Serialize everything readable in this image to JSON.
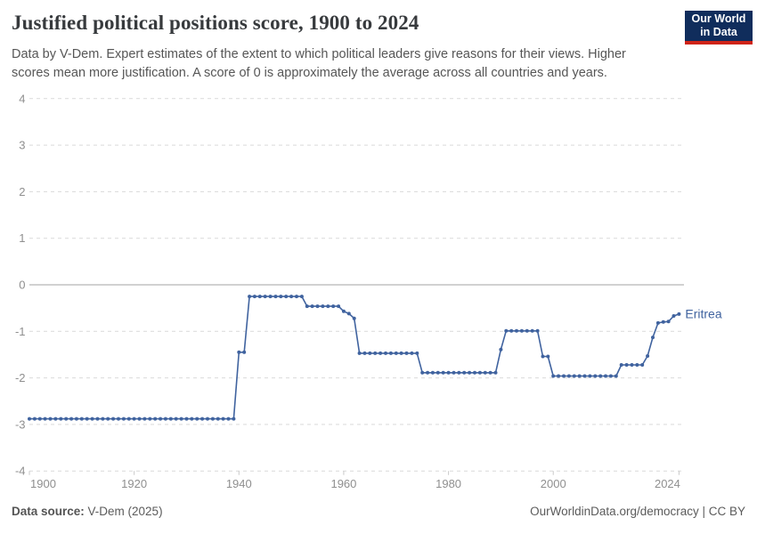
{
  "header": {
    "title": "Justified political positions score, 1900 to 2024",
    "subtitle": "Data by V-Dem. Expert estimates of the extent to which political leaders give reasons for their views. Higher scores mean more justification. A score of 0 is approximately the average across all countries and years.",
    "logo": {
      "line1": "Our World",
      "line2": "in Data"
    }
  },
  "theme": {
    "line_color": "#40639f",
    "logo_bg": "#102d5c",
    "logo_accent": "#cf2318",
    "grid_color": "#d9d9d9",
    "zero_line_color": "#a3a3a3",
    "axis_label_color": "#8f8f8f",
    "tick_color": "#c9c9c9"
  },
  "chart_data": {
    "type": "line",
    "title": "Justified political positions score, 1900 to 2024",
    "xlabel": "",
    "ylabel": "",
    "xlim": [
      1900,
      2024
    ],
    "ylim": [
      -4,
      4
    ],
    "x_ticks": [
      1900,
      1920,
      1940,
      1960,
      1980,
      2000,
      2024
    ],
    "y_ticks": [
      4,
      3,
      2,
      1,
      0,
      -1,
      -2,
      -3,
      -4
    ],
    "grid": "horizontal dashed, solid line at 0",
    "legend_position": "end-of-line label",
    "x_start": 1900,
    "x_step": 1,
    "series": [
      {
        "name": "Eritrea",
        "color": "#40639f",
        "values": [
          -2.88,
          -2.88,
          -2.88,
          -2.88,
          -2.88,
          -2.88,
          -2.88,
          -2.88,
          -2.88,
          -2.88,
          -2.88,
          -2.88,
          -2.88,
          -2.88,
          -2.88,
          -2.88,
          -2.88,
          -2.88,
          -2.88,
          -2.88,
          -2.88,
          -2.88,
          -2.88,
          -2.88,
          -2.88,
          -2.88,
          -2.88,
          -2.88,
          -2.88,
          -2.88,
          -2.88,
          -2.88,
          -2.88,
          -2.88,
          -2.88,
          -2.88,
          -2.88,
          -2.88,
          -2.88,
          -2.88,
          -1.45,
          -1.45,
          -0.25,
          -0.25,
          -0.25,
          -0.25,
          -0.25,
          -0.25,
          -0.25,
          -0.25,
          -0.25,
          -0.25,
          -0.25,
          -0.46,
          -0.46,
          -0.46,
          -0.46,
          -0.46,
          -0.46,
          -0.46,
          -0.57,
          -0.62,
          -0.72,
          -1.47,
          -1.47,
          -1.47,
          -1.47,
          -1.47,
          -1.47,
          -1.47,
          -1.47,
          -1.47,
          -1.47,
          -1.47,
          -1.47,
          -1.89,
          -1.89,
          -1.89,
          -1.89,
          -1.89,
          -1.89,
          -1.89,
          -1.89,
          -1.89,
          -1.89,
          -1.89,
          -1.89,
          -1.89,
          -1.89,
          -1.89,
          -1.39,
          -0.99,
          -0.99,
          -0.99,
          -0.99,
          -0.99,
          -0.99,
          -0.99,
          -1.54,
          -1.54,
          -1.96,
          -1.96,
          -1.96,
          -1.96,
          -1.96,
          -1.96,
          -1.96,
          -1.96,
          -1.96,
          -1.96,
          -1.96,
          -1.96,
          -1.96,
          -1.72,
          -1.72,
          -1.72,
          -1.72,
          -1.72,
          -1.53,
          -1.13,
          -0.82,
          -0.8,
          -0.79,
          -0.67,
          -0.63
        ]
      }
    ]
  },
  "footer": {
    "source_label": "Data source:",
    "source_value": " V-Dem (2025)",
    "link": "OurWorldinData.org/democracy | CC BY"
  }
}
